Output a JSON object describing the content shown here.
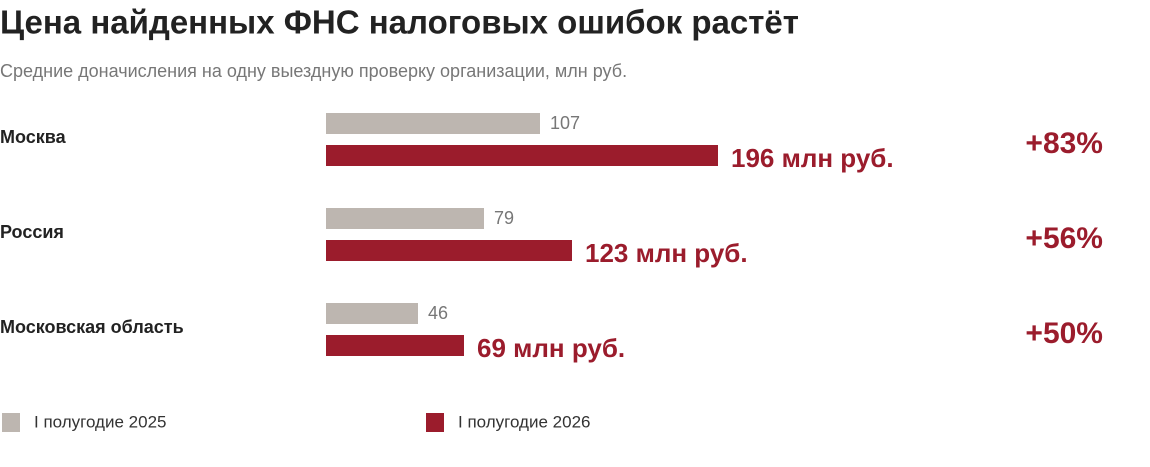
{
  "chart_data": {
    "type": "bar",
    "orientation": "horizontal",
    "title": "Цена найденных ФНС налоговых ошибок растёт",
    "subtitle": "Средние доначисления на одну выездную проверку организации, млн руб.",
    "categories": [
      "Москва",
      "Россия",
      "Московская область"
    ],
    "series": [
      {
        "name": "I полугодие 2025",
        "color": "#bdb6b0",
        "values": [
          107,
          79,
          46
        ]
      },
      {
        "name": "I полугодие 2026",
        "color": "#9b1c2c",
        "values": [
          196,
          123,
          69
        ],
        "value_labels": [
          "196 млн руб.",
          "123 млн руб.",
          "69 млн руб."
        ]
      }
    ],
    "annotations": [
      "+83%",
      "+56%",
      "+50%"
    ],
    "annotation_color": "#9b1c2c"
  }
}
